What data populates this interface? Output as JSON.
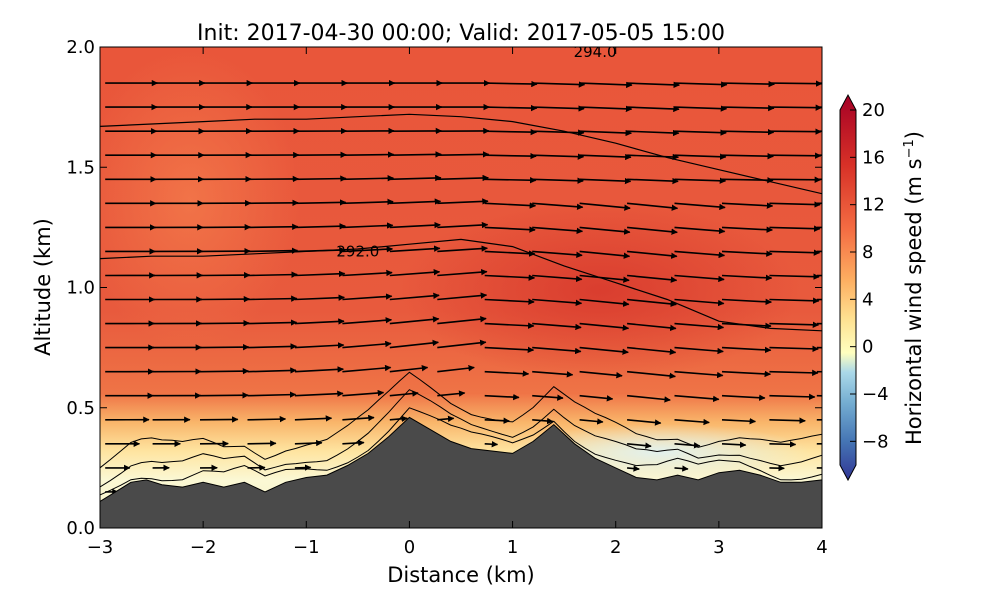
{
  "chart_data": {
    "type": "heatmap",
    "title": "Init: 2017-04-30 00:00; Valid: 2017-05-05 15:00",
    "xlabel": "Distance (km)",
    "ylabel": "Altitude (km)",
    "xlim": [
      -3,
      4
    ],
    "ylim": [
      0,
      2
    ],
    "x_ticks": [
      -3,
      -2,
      -1,
      0,
      1,
      2,
      3,
      4
    ],
    "x_tick_labels": [
      "−3",
      "−2",
      "−1",
      "0",
      "1",
      "2",
      "3",
      "4"
    ],
    "y_ticks": [
      0.0,
      0.5,
      1.0,
      1.5,
      2.0
    ],
    "y_tick_labels": [
      "0.0",
      "0.5",
      "1.0",
      "1.5",
      "2.0"
    ],
    "colorbar": {
      "label": "Horizontal wind speed (m s⁻¹)",
      "label_main": "Horizontal wind speed (m s",
      "label_exp": "−1",
      "label_close": ")",
      "range": [
        -10,
        20
      ],
      "ticks": [
        -8,
        -4,
        0,
        4,
        8,
        12,
        16,
        20
      ],
      "tick_labels": [
        "−8",
        "−4",
        "0",
        "4",
        "8",
        "12",
        "16",
        "20"
      ],
      "colormap": "RdYlBu_r",
      "extend": "both"
    },
    "terrain": {
      "x": [
        -3.0,
        -2.85,
        -2.7,
        -2.55,
        -2.4,
        -2.2,
        -2.0,
        -1.8,
        -1.6,
        -1.4,
        -1.2,
        -1.0,
        -0.8,
        -0.6,
        -0.4,
        -0.2,
        0.0,
        0.2,
        0.4,
        0.6,
        0.8,
        1.0,
        1.2,
        1.4,
        1.6,
        1.8,
        2.0,
        2.2,
        2.4,
        2.6,
        2.8,
        3.0,
        3.2,
        3.4,
        3.6,
        3.8,
        4.0
      ],
      "altitude": [
        0.11,
        0.15,
        0.19,
        0.2,
        0.18,
        0.17,
        0.19,
        0.17,
        0.19,
        0.15,
        0.19,
        0.21,
        0.22,
        0.26,
        0.31,
        0.38,
        0.46,
        0.41,
        0.36,
        0.33,
        0.32,
        0.31,
        0.36,
        0.43,
        0.35,
        0.29,
        0.25,
        0.21,
        0.2,
        0.22,
        0.2,
        0.23,
        0.24,
        0.22,
        0.19,
        0.19,
        0.2
      ]
    },
    "contours": [
      {
        "label": "292.0",
        "label_x": -0.5,
        "label_y": 1.15,
        "x": [
          -3.0,
          -2.5,
          -2.0,
          -1.5,
          -1.0,
          -0.5,
          0.0,
          0.5,
          1.0,
          1.5,
          2.0,
          2.5,
          3.0,
          3.5,
          4.0
        ],
        "y": [
          1.12,
          1.13,
          1.13,
          1.14,
          1.15,
          1.16,
          1.18,
          1.2,
          1.17,
          1.09,
          1.02,
          0.95,
          0.86,
          0.83,
          0.82
        ]
      },
      {
        "label": "294.0",
        "label_x": 1.8,
        "label_y": 1.98,
        "x": [
          -3.0,
          -2.5,
          -2.0,
          -1.5,
          -1.0,
          -0.5,
          0.0,
          0.5,
          1.0,
          1.5,
          2.0,
          2.5,
          3.0,
          3.5,
          4.0
        ],
        "y": [
          1.67,
          1.68,
          1.69,
          1.7,
          1.7,
          1.71,
          1.72,
          1.71,
          1.69,
          1.65,
          1.6,
          1.54,
          1.49,
          1.44,
          1.39
        ]
      }
    ],
    "wind_speed_regions": [
      {
        "region": "boundary layer near terrain",
        "speed_m_s": 3
      },
      {
        "region": "lee side near surface",
        "speed_m_s": -2
      },
      {
        "region": "mid troposphere over ridge",
        "speed_m_s": 16
      },
      {
        "region": "upper left",
        "speed_m_s": 13
      },
      {
        "region": "upper right",
        "speed_m_s": 15
      }
    ],
    "wind_vectors": "uniform grid of eastward arrows, strong aloft, weak and variable near terrain"
  }
}
